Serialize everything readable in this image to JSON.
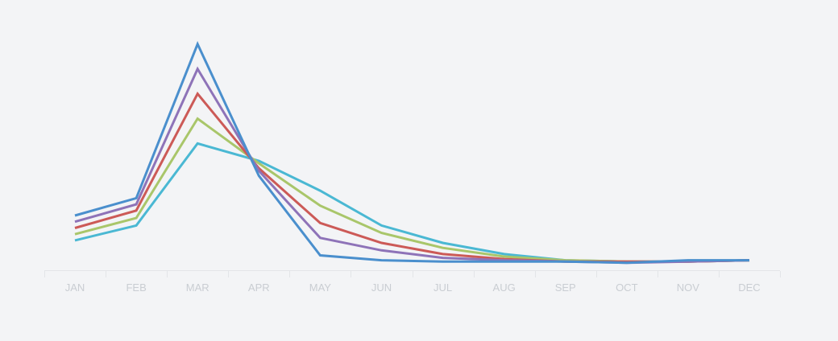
{
  "chart_data": {
    "type": "line",
    "categories": [
      "JAN",
      "FEB",
      "MAR",
      "APR",
      "MAY",
      "JUN",
      "JUL",
      "AUG",
      "SEP",
      "OCT",
      "NOV",
      "DEC"
    ],
    "ylim": [
      0,
      100
    ],
    "grid": false,
    "series": [
      {
        "color": "#4a8fcd",
        "values": [
          22,
          29,
          91,
          38,
          6,
          4,
          3.5,
          3.5,
          3.5,
          3,
          4,
          4
        ]
      },
      {
        "color": "#8e73b8",
        "values": [
          19.5,
          26.5,
          81,
          40,
          13,
          8,
          5,
          4,
          3.5,
          3,
          3.5,
          4
        ]
      },
      {
        "color": "#cc5a57",
        "values": [
          17,
          24,
          71,
          41,
          19,
          11,
          6.5,
          4.5,
          3.5,
          3.5,
          3.5,
          4
        ]
      },
      {
        "color": "#a9c66a",
        "values": [
          14.5,
          21,
          61,
          43,
          26,
          15,
          9,
          5.5,
          4,
          3.5,
          3.5,
          4
        ]
      },
      {
        "color": "#4ab8d3",
        "values": [
          12,
          18,
          51,
          44,
          32,
          18,
          11,
          6.5,
          4,
          3.5,
          3.5,
          4
        ]
      }
    ]
  }
}
